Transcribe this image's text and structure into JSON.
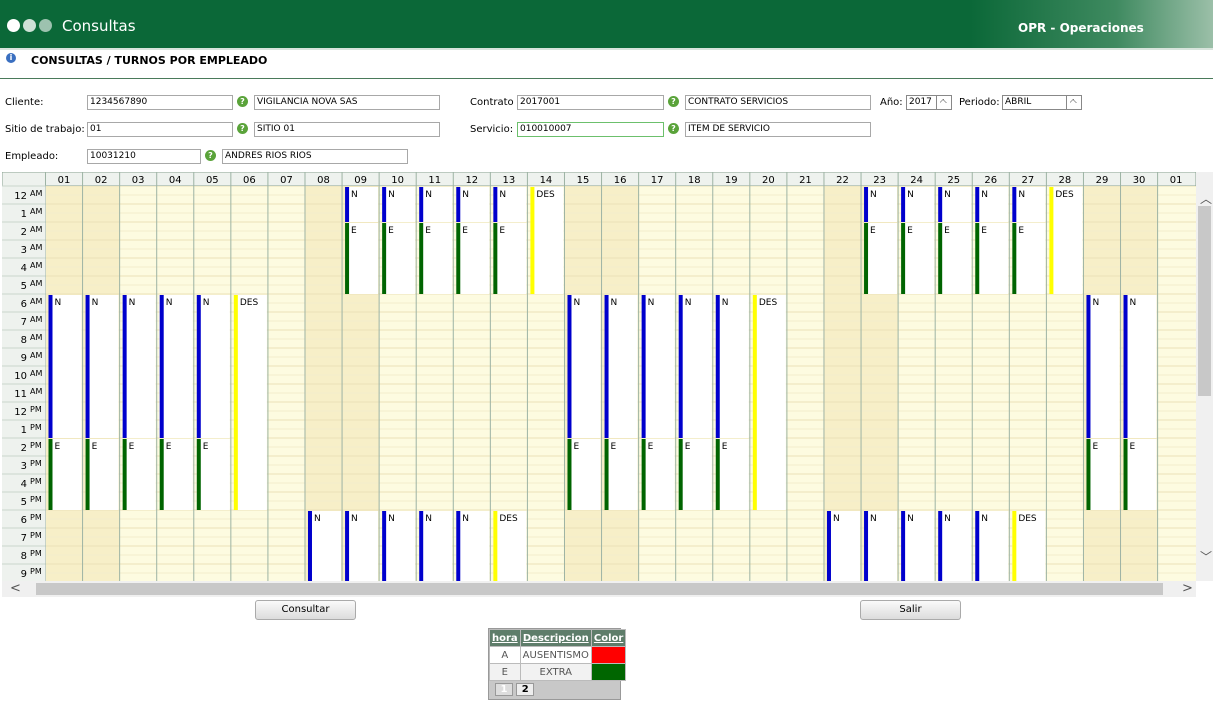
{
  "header": {
    "title": "Consultas",
    "module": "OPR - Operaciones"
  },
  "breadcrumb": "CONSULTAS / TURNOS POR EMPLEADO",
  "form": {
    "cliente": {
      "label": "Cliente:",
      "code": "1234567890",
      "name": "VIGILANCIA NOVA SAS"
    },
    "sitio": {
      "label": "Sitio de trabajo:",
      "code": "01",
      "name": "SITIO 01"
    },
    "empleado": {
      "label": "Empleado:",
      "code": "10031210",
      "name": "ANDRES RIOS RIOS"
    },
    "contrato": {
      "label": "Contrato",
      "code": "2017001",
      "name": "CONTRATO SERVICIOS"
    },
    "servicio": {
      "label": "Servicio:",
      "code": "010010007",
      "name": "ITEM DE SERVICIO"
    },
    "anio": {
      "label": "Año:",
      "value": "2017"
    },
    "periodo": {
      "label": "Periodo:",
      "value": "ABRIL"
    }
  },
  "calendar": {
    "hours": [
      {
        "hour": "12",
        "ampm": "AM"
      },
      {
        "hour": "1",
        "ampm": "AM"
      },
      {
        "hour": "2",
        "ampm": "AM"
      },
      {
        "hour": "3",
        "ampm": "AM"
      },
      {
        "hour": "4",
        "ampm": "AM"
      },
      {
        "hour": "5",
        "ampm": "AM"
      },
      {
        "hour": "6",
        "ampm": "AM"
      },
      {
        "hour": "7",
        "ampm": "AM"
      },
      {
        "hour": "8",
        "ampm": "AM"
      },
      {
        "hour": "9",
        "ampm": "AM"
      },
      {
        "hour": "10",
        "ampm": "AM"
      },
      {
        "hour": "11",
        "ampm": "AM"
      },
      {
        "hour": "12",
        "ampm": "PM"
      },
      {
        "hour": "1",
        "ampm": "PM"
      },
      {
        "hour": "2",
        "ampm": "PM"
      },
      {
        "hour": "3",
        "ampm": "PM"
      },
      {
        "hour": "4",
        "ampm": "PM"
      },
      {
        "hour": "5",
        "ampm": "PM"
      },
      {
        "hour": "6",
        "ampm": "PM"
      },
      {
        "hour": "7",
        "ampm": "PM"
      },
      {
        "hour": "8",
        "ampm": "PM"
      },
      {
        "hour": "9",
        "ampm": "PM"
      }
    ],
    "columns": [
      {
        "day": "01",
        "shifts": [
          {
            "label": "N",
            "from": 6,
            "to": 14,
            "color": "#0000cc"
          },
          {
            "label": "E",
            "from": 14,
            "to": 18,
            "color": "#006400"
          }
        ]
      },
      {
        "day": "02",
        "shifts": [
          {
            "label": "N",
            "from": 6,
            "to": 14,
            "color": "#0000cc"
          },
          {
            "label": "E",
            "from": 14,
            "to": 18,
            "color": "#006400"
          }
        ]
      },
      {
        "day": "03",
        "shifts": [
          {
            "label": "N",
            "from": 6,
            "to": 14,
            "color": "#0000cc"
          },
          {
            "label": "E",
            "from": 14,
            "to": 18,
            "color": "#006400"
          }
        ]
      },
      {
        "day": "04",
        "shifts": [
          {
            "label": "N",
            "from": 6,
            "to": 14,
            "color": "#0000cc"
          },
          {
            "label": "E",
            "from": 14,
            "to": 18,
            "color": "#006400"
          }
        ]
      },
      {
        "day": "05",
        "shifts": [
          {
            "label": "N",
            "from": 6,
            "to": 14,
            "color": "#0000cc"
          },
          {
            "label": "E",
            "from": 14,
            "to": 18,
            "color": "#006400"
          }
        ]
      },
      {
        "day": "06",
        "shifts": [
          {
            "label": "DES",
            "from": 6,
            "to": 18,
            "color": "#ffff00"
          }
        ]
      },
      {
        "day": "07",
        "shifts": []
      },
      {
        "day": "08",
        "shifts": [
          {
            "label": "N",
            "from": 18,
            "to": 24,
            "color": "#0000cc"
          }
        ]
      },
      {
        "day": "09",
        "shifts": [
          {
            "label": "N",
            "from": 0,
            "to": 2,
            "color": "#0000cc"
          },
          {
            "label": "E",
            "from": 2,
            "to": 6,
            "color": "#006400"
          },
          {
            "label": "N",
            "from": 18,
            "to": 24,
            "color": "#0000cc"
          }
        ]
      },
      {
        "day": "10",
        "shifts": [
          {
            "label": "N",
            "from": 0,
            "to": 2,
            "color": "#0000cc"
          },
          {
            "label": "E",
            "from": 2,
            "to": 6,
            "color": "#006400"
          },
          {
            "label": "N",
            "from": 18,
            "to": 24,
            "color": "#0000cc"
          }
        ]
      },
      {
        "day": "11",
        "shifts": [
          {
            "label": "N",
            "from": 0,
            "to": 2,
            "color": "#0000cc"
          },
          {
            "label": "E",
            "from": 2,
            "to": 6,
            "color": "#006400"
          },
          {
            "label": "N",
            "from": 18,
            "to": 24,
            "color": "#0000cc"
          }
        ]
      },
      {
        "day": "12",
        "shifts": [
          {
            "label": "N",
            "from": 0,
            "to": 2,
            "color": "#0000cc"
          },
          {
            "label": "E",
            "from": 2,
            "to": 6,
            "color": "#006400"
          },
          {
            "label": "N",
            "from": 18,
            "to": 24,
            "color": "#0000cc"
          }
        ]
      },
      {
        "day": "13",
        "shifts": [
          {
            "label": "N",
            "from": 0,
            "to": 2,
            "color": "#0000cc"
          },
          {
            "label": "E",
            "from": 2,
            "to": 6,
            "color": "#006400"
          },
          {
            "label": "DES",
            "from": 18,
            "to": 24,
            "color": "#ffff00"
          }
        ]
      },
      {
        "day": "14",
        "shifts": [
          {
            "label": "DES",
            "from": 0,
            "to": 6,
            "color": "#ffff00"
          }
        ]
      },
      {
        "day": "15",
        "shifts": [
          {
            "label": "N",
            "from": 6,
            "to": 14,
            "color": "#0000cc"
          },
          {
            "label": "E",
            "from": 14,
            "to": 18,
            "color": "#006400"
          }
        ]
      },
      {
        "day": "16",
        "shifts": [
          {
            "label": "N",
            "from": 6,
            "to": 14,
            "color": "#0000cc"
          },
          {
            "label": "E",
            "from": 14,
            "to": 18,
            "color": "#006400"
          }
        ]
      },
      {
        "day": "17",
        "shifts": [
          {
            "label": "N",
            "from": 6,
            "to": 14,
            "color": "#0000cc"
          },
          {
            "label": "E",
            "from": 14,
            "to": 18,
            "color": "#006400"
          }
        ]
      },
      {
        "day": "18",
        "shifts": [
          {
            "label": "N",
            "from": 6,
            "to": 14,
            "color": "#0000cc"
          },
          {
            "label": "E",
            "from": 14,
            "to": 18,
            "color": "#006400"
          }
        ]
      },
      {
        "day": "19",
        "shifts": [
          {
            "label": "N",
            "from": 6,
            "to": 14,
            "color": "#0000cc"
          },
          {
            "label": "E",
            "from": 14,
            "to": 18,
            "color": "#006400"
          }
        ]
      },
      {
        "day": "20",
        "shifts": [
          {
            "label": "DES",
            "from": 6,
            "to": 18,
            "color": "#ffff00"
          }
        ]
      },
      {
        "day": "21",
        "shifts": []
      },
      {
        "day": "22",
        "shifts": [
          {
            "label": "N",
            "from": 18,
            "to": 24,
            "color": "#0000cc"
          }
        ]
      },
      {
        "day": "23",
        "shifts": [
          {
            "label": "N",
            "from": 0,
            "to": 2,
            "color": "#0000cc"
          },
          {
            "label": "E",
            "from": 2,
            "to": 6,
            "color": "#006400"
          },
          {
            "label": "N",
            "from": 18,
            "to": 24,
            "color": "#0000cc"
          }
        ]
      },
      {
        "day": "24",
        "shifts": [
          {
            "label": "N",
            "from": 0,
            "to": 2,
            "color": "#0000cc"
          },
          {
            "label": "E",
            "from": 2,
            "to": 6,
            "color": "#006400"
          },
          {
            "label": "N",
            "from": 18,
            "to": 24,
            "color": "#0000cc"
          }
        ]
      },
      {
        "day": "25",
        "shifts": [
          {
            "label": "N",
            "from": 0,
            "to": 2,
            "color": "#0000cc"
          },
          {
            "label": "E",
            "from": 2,
            "to": 6,
            "color": "#006400"
          },
          {
            "label": "N",
            "from": 18,
            "to": 24,
            "color": "#0000cc"
          }
        ]
      },
      {
        "day": "26",
        "shifts": [
          {
            "label": "N",
            "from": 0,
            "to": 2,
            "color": "#0000cc"
          },
          {
            "label": "E",
            "from": 2,
            "to": 6,
            "color": "#006400"
          },
          {
            "label": "N",
            "from": 18,
            "to": 24,
            "color": "#0000cc"
          }
        ]
      },
      {
        "day": "27",
        "shifts": [
          {
            "label": "N",
            "from": 0,
            "to": 2,
            "color": "#0000cc"
          },
          {
            "label": "E",
            "from": 2,
            "to": 6,
            "color": "#006400"
          },
          {
            "label": "DES",
            "from": 18,
            "to": 24,
            "color": "#ffff00"
          }
        ]
      },
      {
        "day": "28",
        "shifts": [
          {
            "label": "DES",
            "from": 0,
            "to": 6,
            "color": "#ffff00"
          }
        ]
      },
      {
        "day": "29",
        "shifts": [
          {
            "label": "N",
            "from": 6,
            "to": 14,
            "color": "#0000cc"
          },
          {
            "label": "E",
            "from": 14,
            "to": 18,
            "color": "#006400"
          }
        ]
      },
      {
        "day": "30",
        "shifts": [
          {
            "label": "N",
            "from": 6,
            "to": 14,
            "color": "#0000cc"
          },
          {
            "label": "E",
            "from": 14,
            "to": 18,
            "color": "#006400"
          }
        ]
      },
      {
        "day": "01",
        "shifts": []
      }
    ]
  },
  "buttons": {
    "consultar": "Consultar",
    "salir": "Salir"
  },
  "legend": {
    "headers": [
      "hora",
      "Descripcion",
      "Color"
    ],
    "rows": [
      {
        "code": "A",
        "description": "AUSENTISMO",
        "color": "#ff0000"
      },
      {
        "code": "E",
        "description": "EXTRA",
        "color": "#006600"
      }
    ],
    "pages": [
      "1",
      "2"
    ]
  }
}
